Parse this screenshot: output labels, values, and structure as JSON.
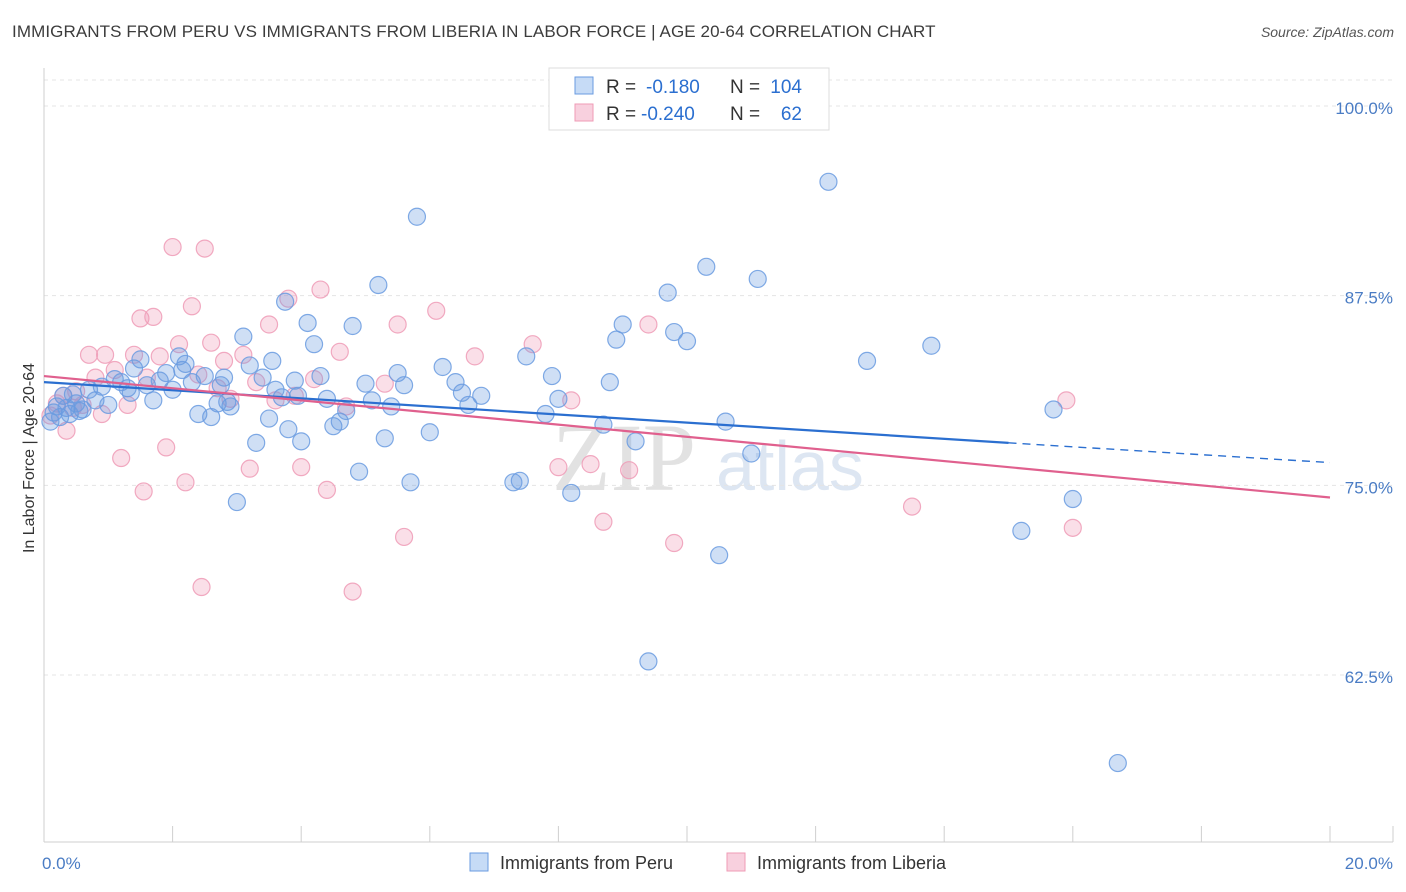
{
  "header": {
    "title": "IMMIGRANTS FROM PERU VS IMMIGRANTS FROM LIBERIA IN LABOR FORCE | AGE 20-64 CORRELATION CHART",
    "source": "Source: ZipAtlas.com"
  },
  "watermark": {
    "zip": "ZIP",
    "atlas": "atlas"
  },
  "chart_data": {
    "type": "scatter",
    "title": "IMMIGRANTS FROM PERU VS IMMIGRANTS FROM LIBERIA IN LABOR FORCE | AGE 20-64 CORRELATION CHART",
    "xlabel": "",
    "ylabel": "In Labor Force | Age 20-64",
    "xlim": [
      0,
      20
    ],
    "ylim": [
      51.5,
      102.5
    ],
    "x_tick_labels": {
      "min": "0.0%",
      "max": "20.0%"
    },
    "y_ticks": [
      {
        "value": 100.0,
        "label": "100.0%"
      },
      {
        "value": 87.5,
        "label": "87.5%"
      },
      {
        "value": 75.0,
        "label": "75.0%"
      },
      {
        "value": 62.5,
        "label": "62.5%"
      }
    ],
    "legend": {
      "r_label": "R =",
      "n_label": "N ="
    },
    "colors": {
      "peru": "#6a9be0",
      "peru_line": "#2b6fd0",
      "liberia": "#ef9bb6",
      "liberia_line": "#e0608e",
      "tick_text": "#4a7cc4"
    },
    "series": [
      {
        "name": "Immigrants from Peru",
        "r": "-0.180",
        "n": "104",
        "trend": {
          "x0": 0.0,
          "y0": 81.8,
          "x1": 15.0,
          "y1": 77.8,
          "x_dash_end": 20.0,
          "y_dash_end": 76.5
        },
        "points": [
          [
            0.1,
            79.2
          ],
          [
            0.15,
            79.8
          ],
          [
            0.2,
            80.2
          ],
          [
            0.25,
            79.5
          ],
          [
            0.3,
            80.9
          ],
          [
            0.35,
            80.1
          ],
          [
            0.4,
            79.7
          ],
          [
            0.45,
            81.0
          ],
          [
            0.5,
            80.4
          ],
          [
            0.6,
            80.0
          ],
          [
            0.7,
            81.3
          ],
          [
            0.8,
            80.6
          ],
          [
            0.9,
            81.5
          ],
          [
            1.0,
            80.3
          ],
          [
            1.1,
            82.0
          ],
          [
            1.2,
            81.8
          ],
          [
            1.3,
            81.4
          ],
          [
            1.4,
            82.7
          ],
          [
            1.5,
            83.3
          ],
          [
            1.6,
            81.6
          ],
          [
            1.7,
            80.6
          ],
          [
            1.8,
            81.9
          ],
          [
            1.9,
            82.4
          ],
          [
            2.0,
            81.3
          ],
          [
            2.1,
            83.5
          ],
          [
            2.2,
            83.0
          ],
          [
            2.3,
            81.8
          ],
          [
            2.4,
            79.7
          ],
          [
            2.5,
            82.2
          ],
          [
            2.6,
            79.5
          ],
          [
            2.7,
            80.4
          ],
          [
            2.75,
            81.6
          ],
          [
            2.8,
            82.1
          ],
          [
            2.85,
            80.5
          ],
          [
            2.9,
            80.2
          ],
          [
            3.0,
            73.9
          ],
          [
            3.1,
            84.8
          ],
          [
            3.2,
            82.9
          ],
          [
            3.3,
            77.8
          ],
          [
            3.4,
            82.1
          ],
          [
            3.5,
            79.4
          ],
          [
            3.55,
            83.2
          ],
          [
            3.6,
            81.3
          ],
          [
            3.7,
            80.8
          ],
          [
            3.75,
            87.1
          ],
          [
            3.8,
            78.7
          ],
          [
            3.9,
            81.9
          ],
          [
            4.0,
            77.9
          ],
          [
            4.1,
            85.7
          ],
          [
            4.2,
            84.3
          ],
          [
            4.3,
            82.2
          ],
          [
            4.4,
            80.7
          ],
          [
            4.5,
            78.9
          ],
          [
            4.6,
            79.2
          ],
          [
            4.7,
            79.9
          ],
          [
            4.8,
            85.5
          ],
          [
            4.9,
            75.9
          ],
          [
            5.0,
            81.7
          ],
          [
            5.1,
            80.6
          ],
          [
            5.2,
            88.2
          ],
          [
            5.3,
            78.1
          ],
          [
            5.5,
            82.4
          ],
          [
            5.6,
            81.6
          ],
          [
            5.7,
            75.2
          ],
          [
            5.8,
            92.7
          ],
          [
            6.0,
            78.5
          ],
          [
            6.2,
            82.8
          ],
          [
            6.4,
            81.8
          ],
          [
            6.5,
            81.1
          ],
          [
            6.6,
            80.3
          ],
          [
            7.4,
            75.3
          ],
          [
            7.5,
            83.5
          ],
          [
            7.3,
            75.2
          ],
          [
            7.8,
            79.7
          ],
          [
            7.9,
            82.2
          ],
          [
            8.2,
            74.5
          ],
          [
            8.7,
            79.0
          ],
          [
            8.8,
            81.8
          ],
          [
            8.9,
            84.6
          ],
          [
            9.0,
            85.6
          ],
          [
            9.2,
            77.9
          ],
          [
            9.7,
            87.7
          ],
          [
            9.8,
            85.1
          ],
          [
            10.0,
            84.5
          ],
          [
            10.3,
            89.4
          ],
          [
            10.5,
            70.4
          ],
          [
            10.6,
            79.2
          ],
          [
            11.0,
            77.1
          ],
          [
            11.1,
            88.6
          ],
          [
            12.2,
            95.0
          ],
          [
            12.8,
            83.2
          ],
          [
            13.8,
            84.2
          ],
          [
            15.2,
            72.0
          ],
          [
            15.7,
            80.0
          ],
          [
            16.0,
            74.1
          ],
          [
            16.7,
            56.7
          ],
          [
            8.0,
            80.7
          ],
          [
            9.4,
            63.4
          ],
          [
            6.8,
            80.9
          ],
          [
            2.15,
            82.6
          ],
          [
            1.35,
            81.1
          ],
          [
            0.55,
            79.9
          ],
          [
            3.95,
            80.9
          ],
          [
            5.4,
            80.2
          ]
        ]
      },
      {
        "name": "Immigrants from Liberia",
        "r": "-0.240",
        "n": "62",
        "trend": {
          "x0": 0.0,
          "y0": 82.2,
          "x1": 20.0,
          "y1": 74.2
        },
        "points": [
          [
            0.1,
            79.6
          ],
          [
            0.2,
            80.4
          ],
          [
            0.3,
            80.9
          ],
          [
            0.35,
            78.6
          ],
          [
            0.5,
            81.2
          ],
          [
            0.6,
            80.3
          ],
          [
            0.7,
            83.6
          ],
          [
            0.8,
            82.1
          ],
          [
            0.9,
            79.7
          ],
          [
            0.95,
            83.6
          ],
          [
            1.1,
            82.6
          ],
          [
            1.2,
            76.8
          ],
          [
            1.3,
            80.3
          ],
          [
            1.4,
            83.6
          ],
          [
            1.5,
            86.0
          ],
          [
            1.55,
            74.6
          ],
          [
            1.6,
            82.1
          ],
          [
            1.7,
            86.1
          ],
          [
            1.8,
            83.5
          ],
          [
            1.9,
            77.5
          ],
          [
            2.0,
            90.7
          ],
          [
            2.1,
            84.3
          ],
          [
            2.2,
            75.2
          ],
          [
            2.3,
            86.8
          ],
          [
            2.4,
            82.3
          ],
          [
            2.45,
            68.3
          ],
          [
            2.5,
            90.6
          ],
          [
            2.6,
            84.4
          ],
          [
            2.7,
            81.4
          ],
          [
            2.8,
            83.2
          ],
          [
            2.9,
            80.7
          ],
          [
            3.1,
            83.6
          ],
          [
            3.2,
            76.1
          ],
          [
            3.3,
            81.8
          ],
          [
            3.5,
            85.6
          ],
          [
            3.6,
            80.6
          ],
          [
            3.8,
            87.3
          ],
          [
            3.9,
            80.9
          ],
          [
            4.0,
            76.2
          ],
          [
            4.2,
            82.0
          ],
          [
            4.3,
            87.9
          ],
          [
            4.4,
            74.7
          ],
          [
            4.6,
            83.8
          ],
          [
            4.7,
            80.2
          ],
          [
            4.8,
            68.0
          ],
          [
            5.3,
            81.7
          ],
          [
            5.5,
            85.6
          ],
          [
            5.6,
            71.6
          ],
          [
            6.1,
            86.5
          ],
          [
            6.7,
            83.5
          ],
          [
            7.6,
            84.3
          ],
          [
            8.0,
            76.2
          ],
          [
            8.2,
            80.6
          ],
          [
            8.5,
            76.4
          ],
          [
            8.7,
            72.6
          ],
          [
            9.1,
            76.0
          ],
          [
            9.4,
            85.6
          ],
          [
            9.8,
            71.2
          ],
          [
            13.5,
            73.6
          ],
          [
            15.9,
            80.6
          ],
          [
            16.0,
            72.2
          ],
          [
            0.45,
            80.1
          ]
        ]
      }
    ]
  }
}
